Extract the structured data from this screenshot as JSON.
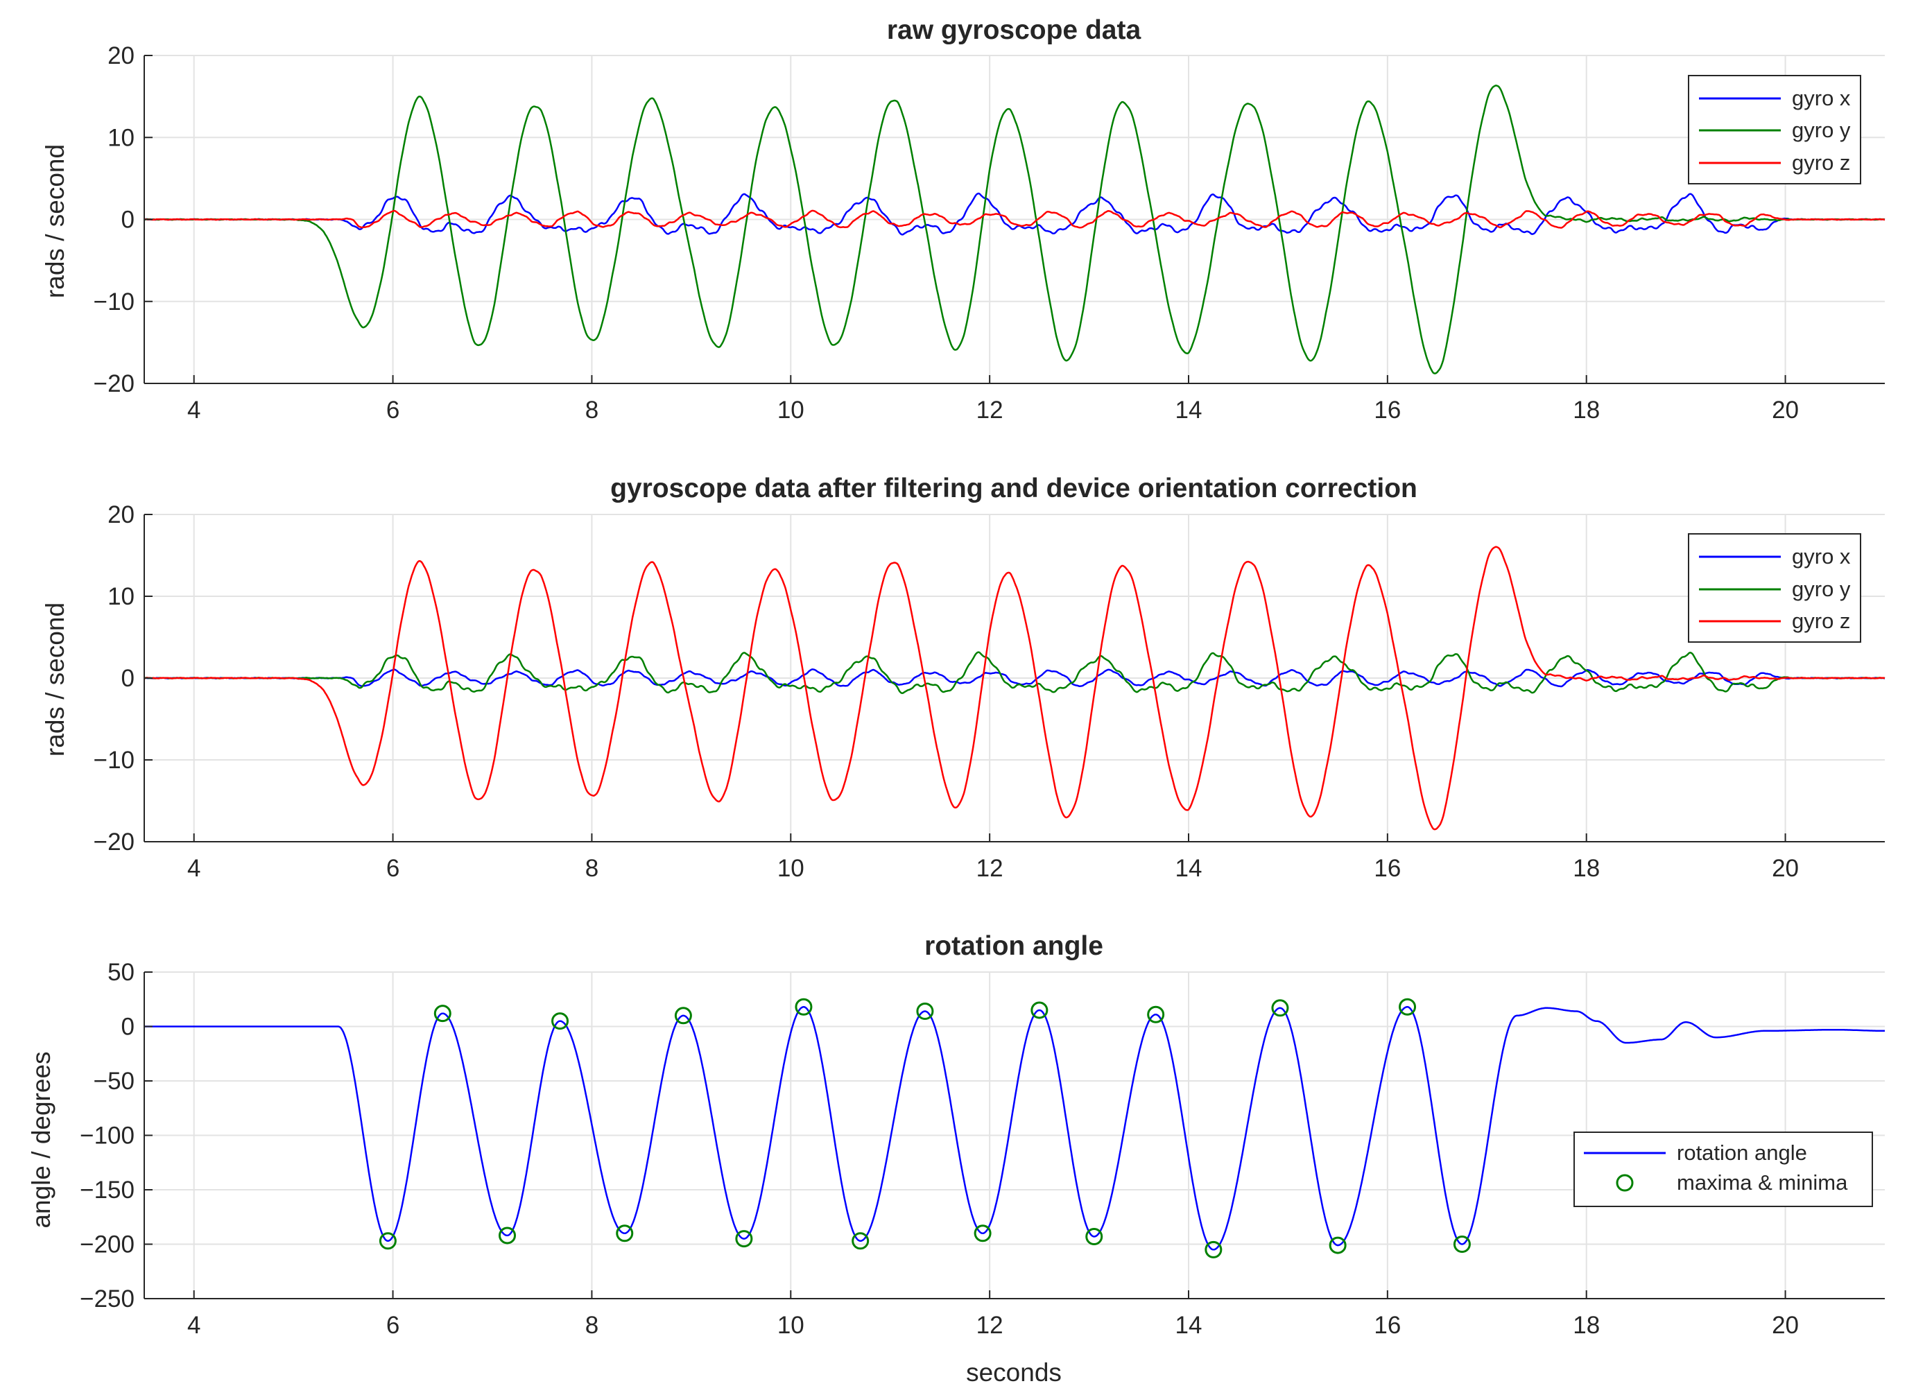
{
  "colors": {
    "blue": "#0000ff",
    "green": "#008000",
    "red": "#ff0000",
    "grid": "#e3e3e3",
    "axis": "#262626"
  },
  "chart_data": [
    {
      "type": "line",
      "title": "raw gyroscope data",
      "xlabel": "",
      "ylabel": "rads / second",
      "xlim": [
        3.5,
        21
      ],
      "ylim": [
        -20,
        20
      ],
      "xticks": [
        4,
        6,
        8,
        10,
        12,
        14,
        16,
        18,
        20
      ],
      "yticks": [
        -20,
        -10,
        0,
        10,
        20
      ],
      "grid": true,
      "legend_position": "top-right",
      "legend": [
        "gyro x",
        "gyro y",
        "gyro z"
      ],
      "series": [
        {
          "name": "gyro x",
          "color": "#0000ff",
          "role": "small"
        },
        {
          "name": "gyro y",
          "color": "#008000",
          "role": "main"
        },
        {
          "name": "gyro z",
          "color": "#ff0000",
          "role": "tiny"
        }
      ],
      "peaks": [
        {
          "x": 5.72,
          "y": -13.5
        },
        {
          "x": 6.27,
          "y": 15.2
        },
        {
          "x": 6.87,
          "y": -15.8
        },
        {
          "x": 7.43,
          "y": 14.6
        },
        {
          "x": 8.01,
          "y": -15.2
        },
        {
          "x": 8.59,
          "y": 14.8
        },
        {
          "x": 9.27,
          "y": -15.8
        },
        {
          "x": 9.83,
          "y": 14.2
        },
        {
          "x": 10.45,
          "y": -15.7
        },
        {
          "x": 11.03,
          "y": 14.8
        },
        {
          "x": 11.67,
          "y": -16.4
        },
        {
          "x": 12.17,
          "y": 14.3
        },
        {
          "x": 12.79,
          "y": -17.6
        },
        {
          "x": 13.33,
          "y": 14.8
        },
        {
          "x": 13.97,
          "y": -16.5
        },
        {
          "x": 14.61,
          "y": 14.6
        },
        {
          "x": 15.23,
          "y": -17.5
        },
        {
          "x": 15.81,
          "y": 14.5
        },
        {
          "x": 16.48,
          "y": -18.9
        },
        {
          "x": 17.08,
          "y": 16.6
        }
      ]
    },
    {
      "type": "line",
      "title": "gyroscope data after filtering and device orientation correction",
      "xlabel": "",
      "ylabel": "rads / second",
      "xlim": [
        3.5,
        21
      ],
      "ylim": [
        -20,
        20
      ],
      "xticks": [
        4,
        6,
        8,
        10,
        12,
        14,
        16,
        18,
        20
      ],
      "yticks": [
        -20,
        -10,
        0,
        10,
        20
      ],
      "grid": true,
      "legend_position": "top-right",
      "legend": [
        "gyro x",
        "gyro y",
        "gyro z"
      ],
      "series": [
        {
          "name": "gyro x",
          "color": "#0000ff",
          "role": "tiny"
        },
        {
          "name": "gyro y",
          "color": "#008000",
          "role": "small"
        },
        {
          "name": "gyro z",
          "color": "#ff0000",
          "role": "main"
        }
      ],
      "peaks": [
        {
          "x": 5.72,
          "y": -13.4
        },
        {
          "x": 6.27,
          "y": 14.5
        },
        {
          "x": 6.87,
          "y": -15.3
        },
        {
          "x": 7.42,
          "y": 14.0
        },
        {
          "x": 8.01,
          "y": -14.8
        },
        {
          "x": 8.59,
          "y": 14.2
        },
        {
          "x": 9.27,
          "y": -15.3
        },
        {
          "x": 9.83,
          "y": 13.8
        },
        {
          "x": 10.45,
          "y": -15.3
        },
        {
          "x": 11.03,
          "y": 14.4
        },
        {
          "x": 11.67,
          "y": -16.3
        },
        {
          "x": 12.17,
          "y": 13.7
        },
        {
          "x": 12.79,
          "y": -17.4
        },
        {
          "x": 13.33,
          "y": 14.2
        },
        {
          "x": 13.97,
          "y": -16.3
        },
        {
          "x": 14.61,
          "y": 14.7
        },
        {
          "x": 15.23,
          "y": -17.2
        },
        {
          "x": 15.81,
          "y": 13.9
        },
        {
          "x": 16.48,
          "y": -18.6
        },
        {
          "x": 17.08,
          "y": 16.3
        }
      ]
    },
    {
      "type": "line",
      "title": "rotation angle",
      "xlabel": "seconds",
      "ylabel": "angle / degrees",
      "xlim": [
        3.5,
        21
      ],
      "ylim": [
        -250,
        50
      ],
      "xticks": [
        4,
        6,
        8,
        10,
        12,
        14,
        16,
        18,
        20
      ],
      "yticks": [
        -250,
        -200,
        -150,
        -100,
        -50,
        0,
        50
      ],
      "grid": true,
      "legend_position": "lower-right",
      "legend": [
        "rotation angle",
        "maxima & minima"
      ],
      "series": [
        {
          "name": "rotation angle",
          "color": "#0000ff"
        },
        {
          "name": "maxima & minima",
          "color": "#008000",
          "marker": "circle"
        }
      ],
      "extrema": [
        {
          "x": 5.95,
          "y": -197
        },
        {
          "x": 6.5,
          "y": 12
        },
        {
          "x": 7.15,
          "y": -192
        },
        {
          "x": 7.68,
          "y": 5
        },
        {
          "x": 8.33,
          "y": -190
        },
        {
          "x": 8.92,
          "y": 10
        },
        {
          "x": 9.53,
          "y": -195
        },
        {
          "x": 10.13,
          "y": 18
        },
        {
          "x": 10.7,
          "y": -197
        },
        {
          "x": 11.35,
          "y": 14
        },
        {
          "x": 11.93,
          "y": -190
        },
        {
          "x": 12.5,
          "y": 15
        },
        {
          "x": 13.05,
          "y": -193
        },
        {
          "x": 13.67,
          "y": 11
        },
        {
          "x": 14.25,
          "y": -205
        },
        {
          "x": 14.92,
          "y": 17
        },
        {
          "x": 15.5,
          "y": -201
        },
        {
          "x": 16.2,
          "y": 18
        },
        {
          "x": 16.75,
          "y": -200
        }
      ],
      "tail": [
        {
          "x": 17.3,
          "y": 10
        },
        {
          "x": 17.6,
          "y": 17
        },
        {
          "x": 17.9,
          "y": 14
        },
        {
          "x": 18.1,
          "y": 5
        },
        {
          "x": 18.4,
          "y": -15
        },
        {
          "x": 18.75,
          "y": -12
        },
        {
          "x": 19.0,
          "y": 4
        },
        {
          "x": 19.3,
          "y": -10
        },
        {
          "x": 19.8,
          "y": -4
        },
        {
          "x": 20.5,
          "y": -3
        },
        {
          "x": 21,
          "y": -4
        }
      ]
    }
  ]
}
